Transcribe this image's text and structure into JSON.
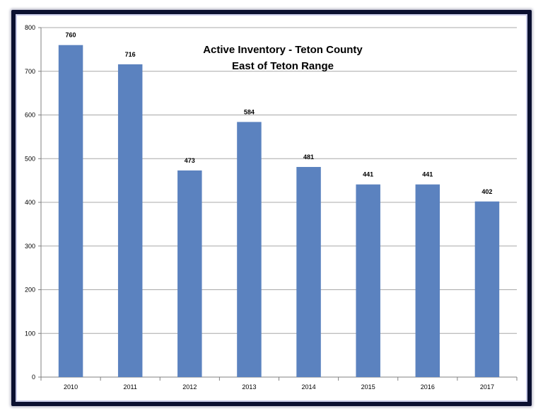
{
  "chart_data": {
    "type": "bar",
    "title": "Active Inventory - Teton County",
    "subtitle": "East of Teton Range",
    "categories": [
      "2010",
      "2011",
      "2012",
      "2013",
      "2014",
      "2015",
      "2016",
      "2017"
    ],
    "values": [
      760,
      716,
      473,
      584,
      481,
      441,
      441,
      402
    ],
    "ylim": [
      0,
      800
    ],
    "yticks": [
      0,
      100,
      200,
      300,
      400,
      500,
      600,
      700,
      800
    ],
    "grid": true,
    "legend": "none",
    "xlabel": "",
    "ylabel": "",
    "bar_color": "#5b82bf",
    "frame_color": "#0b1030"
  }
}
